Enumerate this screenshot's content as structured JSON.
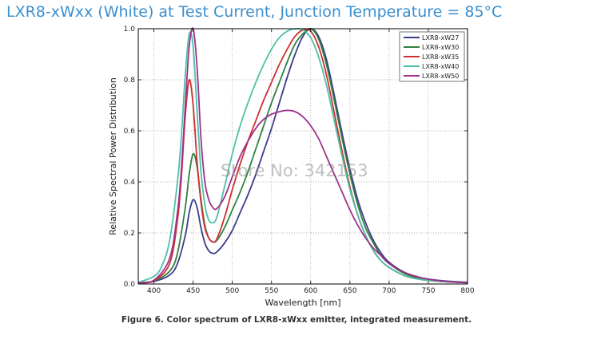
{
  "title": "LXR8-xWxx (White) at Test Current, Junction Temperature = 85°C",
  "caption": "Figure 6.  Color spectrum of LXR8-xWxx emitter, integrated measurement.",
  "watermark": "Store No: 342153",
  "chart_data": {
    "type": "line",
    "xlabel": "Wavelength [nm]",
    "ylabel": "Relative Spectral Power Distribution",
    "xlim": [
      380,
      800
    ],
    "ylim": [
      0,
      1.0
    ],
    "xticks": [
      400,
      450,
      500,
      550,
      600,
      650,
      700,
      750,
      800
    ],
    "yticks": [
      0.0,
      0.2,
      0.4,
      0.6,
      0.8,
      1.0
    ],
    "xtick_labels": [
      "400",
      "450",
      "500",
      "550",
      "600",
      "650",
      "700",
      "750",
      "800"
    ],
    "ytick_labels": [
      "0.0",
      "0.2",
      "0.4",
      "0.6",
      "0.8",
      "1.0"
    ],
    "grid": true,
    "legend_position": "top-right",
    "series": [
      {
        "name": "LXR8-xW27",
        "color": "#3c3c8c",
        "x": [
          380,
          400,
          420,
          430,
          440,
          445,
          450,
          455,
          460,
          465,
          470,
          475,
          480,
          490,
          500,
          510,
          520,
          530,
          540,
          550,
          560,
          570,
          580,
          590,
          600,
          610,
          620,
          630,
          640,
          650,
          660,
          670,
          680,
          690,
          700,
          720,
          740,
          760,
          780,
          800
        ],
        "y": [
          0.005,
          0.01,
          0.035,
          0.08,
          0.19,
          0.28,
          0.33,
          0.3,
          0.22,
          0.16,
          0.13,
          0.12,
          0.125,
          0.16,
          0.21,
          0.28,
          0.35,
          0.43,
          0.52,
          0.61,
          0.71,
          0.81,
          0.9,
          0.97,
          1.0,
          0.97,
          0.88,
          0.74,
          0.59,
          0.45,
          0.33,
          0.24,
          0.17,
          0.12,
          0.085,
          0.045,
          0.025,
          0.015,
          0.01,
          0.007
        ]
      },
      {
        "name": "LXR8-xW30",
        "color": "#2e8040",
        "x": [
          380,
          400,
          420,
          430,
          440,
          445,
          450,
          455,
          460,
          465,
          470,
          475,
          480,
          490,
          500,
          510,
          520,
          530,
          540,
          550,
          560,
          570,
          580,
          590,
          600,
          610,
          620,
          630,
          640,
          650,
          660,
          670,
          680,
          690,
          700,
          720,
          740,
          760,
          780,
          800
        ],
        "y": [
          0.005,
          0.012,
          0.05,
          0.12,
          0.3,
          0.43,
          0.51,
          0.46,
          0.33,
          0.23,
          0.18,
          0.165,
          0.17,
          0.22,
          0.29,
          0.36,
          0.44,
          0.53,
          0.62,
          0.71,
          0.79,
          0.87,
          0.94,
          0.98,
          1.0,
          0.96,
          0.86,
          0.72,
          0.57,
          0.43,
          0.31,
          0.22,
          0.16,
          0.11,
          0.08,
          0.04,
          0.022,
          0.013,
          0.009,
          0.006
        ]
      },
      {
        "name": "LXR8-xW35",
        "color": "#cc3030",
        "x": [
          380,
          400,
          420,
          430,
          435,
          440,
          445,
          450,
          455,
          460,
          465,
          470,
          475,
          480,
          490,
          500,
          510,
          520,
          530,
          540,
          550,
          560,
          570,
          580,
          590,
          600,
          610,
          620,
          630,
          640,
          650,
          660,
          670,
          680,
          690,
          700,
          720,
          740,
          760,
          780,
          800
        ],
        "y": [
          0.005,
          0.013,
          0.08,
          0.25,
          0.42,
          0.66,
          0.8,
          0.7,
          0.48,
          0.32,
          0.22,
          0.18,
          0.165,
          0.175,
          0.26,
          0.37,
          0.47,
          0.56,
          0.64,
          0.72,
          0.79,
          0.86,
          0.92,
          0.97,
          0.995,
          0.99,
          0.93,
          0.82,
          0.67,
          0.52,
          0.38,
          0.27,
          0.19,
          0.13,
          0.09,
          0.065,
          0.032,
          0.018,
          0.011,
          0.008,
          0.005
        ]
      },
      {
        "name": "LXR8-xW40",
        "color": "#4cc0a8",
        "x": [
          380,
          400,
          410,
          420,
          430,
          435,
          440,
          445,
          450,
          455,
          460,
          465,
          470,
          475,
          480,
          490,
          500,
          510,
          520,
          530,
          540,
          550,
          560,
          570,
          580,
          590,
          600,
          610,
          620,
          630,
          640,
          650,
          660,
          670,
          680,
          690,
          700,
          720,
          740,
          760,
          780,
          800
        ],
        "y": [
          0.006,
          0.03,
          0.07,
          0.17,
          0.4,
          0.58,
          0.82,
          0.98,
          0.93,
          0.68,
          0.44,
          0.31,
          0.25,
          0.24,
          0.26,
          0.38,
          0.51,
          0.62,
          0.71,
          0.79,
          0.86,
          0.92,
          0.965,
          0.99,
          1.0,
          0.995,
          0.965,
          0.89,
          0.78,
          0.64,
          0.5,
          0.37,
          0.27,
          0.19,
          0.13,
          0.09,
          0.065,
          0.032,
          0.018,
          0.011,
          0.008,
          0.005
        ]
      },
      {
        "name": "LXR8-xW50",
        "color": "#a0308c",
        "x": [
          380,
          400,
          420,
          430,
          435,
          440,
          445,
          450,
          455,
          460,
          465,
          470,
          475,
          480,
          490,
          500,
          510,
          520,
          530,
          540,
          550,
          560,
          570,
          580,
          590,
          600,
          610,
          620,
          630,
          640,
          650,
          660,
          670,
          680,
          690,
          700,
          720,
          740,
          760,
          780,
          800
        ],
        "y": [
          0.005,
          0.015,
          0.1,
          0.28,
          0.45,
          0.7,
          0.93,
          1.0,
          0.85,
          0.57,
          0.4,
          0.33,
          0.3,
          0.295,
          0.34,
          0.42,
          0.5,
          0.56,
          0.61,
          0.645,
          0.665,
          0.675,
          0.68,
          0.675,
          0.655,
          0.62,
          0.57,
          0.5,
          0.43,
          0.36,
          0.29,
          0.23,
          0.18,
          0.14,
          0.11,
          0.08,
          0.045,
          0.025,
          0.014,
          0.008,
          0.005
        ]
      }
    ]
  }
}
